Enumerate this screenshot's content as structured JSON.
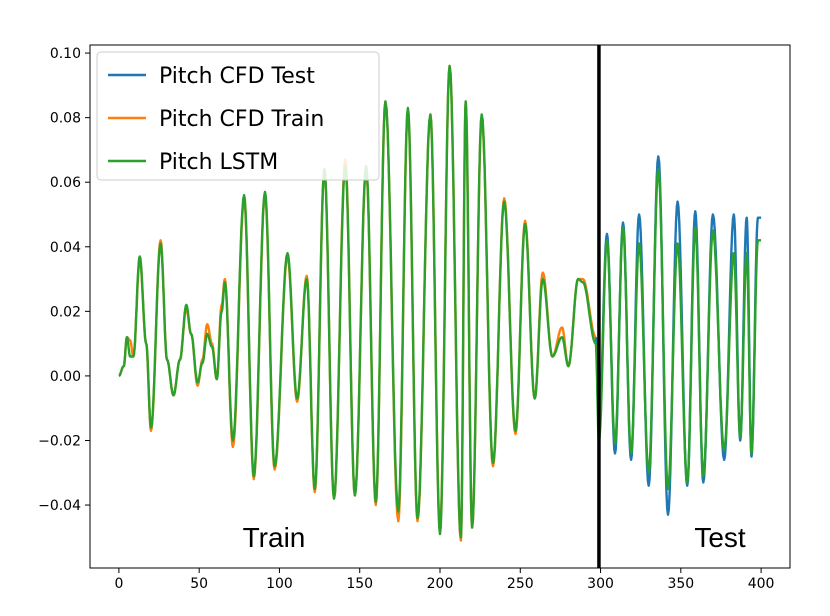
{
  "chart_data": {
    "type": "line",
    "title": "",
    "xlabel": "",
    "ylabel": "",
    "xlim": [
      -18,
      418
    ],
    "ylim": [
      -0.0595,
      0.1025
    ],
    "xticks": [
      0,
      50,
      100,
      150,
      200,
      250,
      300,
      350,
      400
    ],
    "xtick_labels": [
      "0",
      "50",
      "100",
      "150",
      "200",
      "250",
      "300",
      "350",
      "400"
    ],
    "yticks": [
      -0.04,
      -0.02,
      0.0,
      0.02,
      0.04,
      0.06,
      0.08,
      0.1
    ],
    "ytick_labels": [
      "−0.04",
      "−0.02",
      "0.00",
      "0.02",
      "0.04",
      "0.06",
      "0.08",
      "0.10"
    ],
    "grid": false,
    "legend_position": "top-left",
    "split_x": 299,
    "region_labels": {
      "train": "Train",
      "test": "Test"
    },
    "series": [
      {
        "name": "Pitch CFD Test",
        "color": "#1f77b4",
        "points": [
          [
            297,
            0.012
          ],
          [
            299,
            -0.015
          ],
          [
            304,
            0.044
          ],
          [
            309,
            -0.024
          ],
          [
            314,
            0.0475
          ],
          [
            319,
            -0.026
          ],
          [
            324,
            0.05
          ],
          [
            330,
            -0.034
          ],
          [
            336,
            0.068
          ],
          [
            342,
            -0.043
          ],
          [
            348,
            0.054
          ],
          [
            354,
            -0.034
          ],
          [
            359,
            0.051
          ],
          [
            364,
            -0.033
          ],
          [
            370,
            0.05
          ],
          [
            377,
            -0.026
          ],
          [
            383,
            0.05
          ],
          [
            387,
            -0.02
          ],
          [
            391,
            0.049
          ],
          [
            394,
            -0.025
          ],
          [
            398,
            0.049
          ],
          [
            400,
            0.049
          ]
        ]
      },
      {
        "name": "Pitch CFD Train",
        "color": "#ff7f0e",
        "points": [
          [
            0,
            0.0
          ],
          [
            3,
            0.003
          ],
          [
            5,
            0.012
          ],
          [
            7,
            0.011
          ],
          [
            9,
            0.006
          ],
          [
            13,
            0.036
          ],
          [
            17,
            0.01
          ],
          [
            20,
            -0.017
          ],
          [
            26,
            0.042
          ],
          [
            30,
            0.005
          ],
          [
            34,
            -0.006
          ],
          [
            38,
            0.005
          ],
          [
            42,
            0.021
          ],
          [
            45,
            0.013
          ],
          [
            49,
            -0.003
          ],
          [
            52,
            0.005
          ],
          [
            55,
            0.016
          ],
          [
            58,
            0.01
          ],
          [
            61,
            -0.001
          ],
          [
            64,
            0.022
          ],
          [
            66,
            0.03
          ],
          [
            71,
            -0.022
          ],
          [
            78,
            0.055
          ],
          [
            84,
            -0.032
          ],
          [
            91,
            0.056
          ],
          [
            97,
            -0.029
          ],
          [
            105,
            0.037
          ],
          [
            111,
            -0.008
          ],
          [
            117,
            0.031
          ],
          [
            122,
            -0.036
          ],
          [
            128,
            0.064
          ],
          [
            134,
            -0.038
          ],
          [
            141,
            0.067
          ],
          [
            147,
            -0.037
          ],
          [
            154,
            0.064
          ],
          [
            160,
            -0.04
          ],
          [
            166,
            0.085
          ],
          [
            174,
            -0.045
          ],
          [
            180,
            0.082
          ],
          [
            186,
            -0.045
          ],
          [
            194,
            0.081
          ],
          [
            200,
            -0.047
          ],
          [
            206,
            0.096
          ],
          [
            213,
            -0.051
          ],
          [
            216,
            0.085
          ],
          [
            220,
            -0.047
          ],
          [
            226,
            0.08
          ],
          [
            233,
            -0.028
          ],
          [
            240,
            0.055
          ],
          [
            247,
            -0.018
          ],
          [
            253,
            0.048
          ],
          [
            259,
            -0.007
          ],
          [
            264,
            0.032
          ],
          [
            270,
            0.006
          ],
          [
            276,
            0.015
          ],
          [
            280,
            0.003
          ],
          [
            286,
            0.03
          ],
          [
            289,
            0.03
          ],
          [
            297,
            0.012
          ]
        ]
      },
      {
        "name": "Pitch LSTM",
        "color": "#2ca02c",
        "points": [
          [
            0,
            0.0
          ],
          [
            3,
            0.003
          ],
          [
            5,
            0.012
          ],
          [
            7,
            0.006
          ],
          [
            9,
            0.006
          ],
          [
            13,
            0.037
          ],
          [
            17,
            0.01
          ],
          [
            20,
            -0.016
          ],
          [
            26,
            0.041
          ],
          [
            30,
            0.005
          ],
          [
            34,
            -0.006
          ],
          [
            38,
            0.005
          ],
          [
            42,
            0.022
          ],
          [
            45,
            0.013
          ],
          [
            49,
            -0.002
          ],
          [
            52,
            0.004
          ],
          [
            55,
            0.013
          ],
          [
            58,
            0.009
          ],
          [
            61,
            -0.001
          ],
          [
            64,
            0.02
          ],
          [
            66,
            0.029
          ],
          [
            71,
            -0.02
          ],
          [
            78,
            0.056
          ],
          [
            84,
            -0.031
          ],
          [
            91,
            0.057
          ],
          [
            97,
            -0.028
          ],
          [
            105,
            0.038
          ],
          [
            111,
            -0.007
          ],
          [
            117,
            0.03
          ],
          [
            122,
            -0.035
          ],
          [
            128,
            0.064
          ],
          [
            134,
            -0.038
          ],
          [
            141,
            0.065
          ],
          [
            147,
            -0.037
          ],
          [
            154,
            0.065
          ],
          [
            160,
            -0.039
          ],
          [
            166,
            0.085
          ],
          [
            174,
            -0.042
          ],
          [
            180,
            0.083
          ],
          [
            186,
            -0.044
          ],
          [
            194,
            0.081
          ],
          [
            200,
            -0.049
          ],
          [
            206,
            0.096
          ],
          [
            213,
            -0.05
          ],
          [
            216,
            0.085
          ],
          [
            220,
            -0.047
          ],
          [
            226,
            0.081
          ],
          [
            233,
            -0.027
          ],
          [
            240,
            0.054
          ],
          [
            247,
            -0.017
          ],
          [
            253,
            0.047
          ],
          [
            259,
            -0.007
          ],
          [
            264,
            0.03
          ],
          [
            270,
            0.006
          ],
          [
            276,
            0.012
          ],
          [
            280,
            0.003
          ],
          [
            286,
            0.03
          ],
          [
            289,
            0.029
          ],
          [
            297,
            0.01
          ],
          [
            299,
            -0.02
          ],
          [
            304,
            0.042
          ],
          [
            309,
            -0.021
          ],
          [
            314,
            0.046
          ],
          [
            319,
            -0.024
          ],
          [
            324,
            0.041
          ],
          [
            330,
            -0.03
          ],
          [
            336,
            0.064
          ],
          [
            342,
            -0.035
          ],
          [
            348,
            0.041
          ],
          [
            354,
            -0.033
          ],
          [
            359,
            0.046
          ],
          [
            364,
            -0.031
          ],
          [
            370,
            0.045
          ],
          [
            377,
            -0.023
          ],
          [
            383,
            0.038
          ],
          [
            387,
            -0.019
          ],
          [
            391,
            0.038
          ],
          [
            394,
            -0.024
          ],
          [
            398,
            0.042
          ],
          [
            400,
            0.042
          ]
        ]
      }
    ]
  }
}
